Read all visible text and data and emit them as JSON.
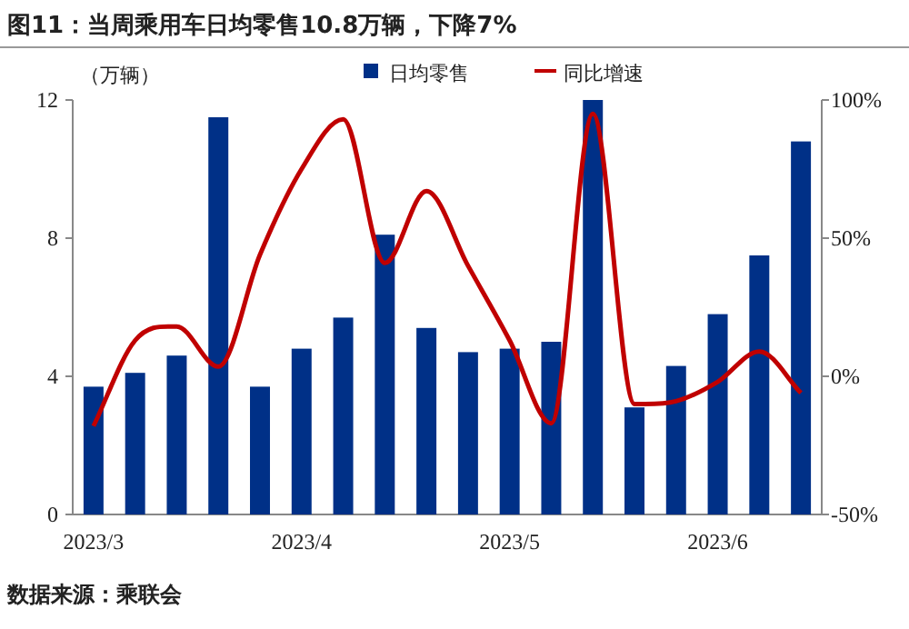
{
  "chart_data": {
    "type": "bar",
    "title": "图11：当周乘用车日均零售10.8万辆，下降7%",
    "ylabel": "（万辆）",
    "categories": [
      "2023/3",
      null,
      null,
      null,
      null,
      "2023/4",
      null,
      null,
      null,
      null,
      "2023/5",
      null,
      null,
      null,
      null,
      "2023/6",
      null,
      null
    ],
    "series": [
      {
        "name": "日均零售",
        "color": "#003087",
        "values": [
          3.7,
          4.1,
          4.6,
          11.5,
          3.7,
          4.8,
          5.7,
          8.1,
          5.4,
          4.7,
          4.8,
          5.0,
          12.0,
          3.1,
          4.3,
          5.8,
          7.5,
          10.8
        ]
      },
      {
        "name": "同比增速",
        "type": "line",
        "axis": "y2",
        "color": "#c00000",
        "values": [
          -18,
          13,
          18,
          3.5,
          44,
          75,
          93,
          41,
          67,
          40,
          13,
          -17,
          95,
          -10,
          -9,
          -2,
          9,
          -6
        ]
      }
    ],
    "ylim": [
      0,
      12
    ],
    "yticks": [
      0,
      4,
      8,
      12
    ],
    "y2lim": [
      -50,
      100
    ],
    "y2ticks": [
      {
        "value": -50,
        "label": "-50%"
      },
      {
        "value": 0,
        "label": "0%"
      },
      {
        "value": 50,
        "label": "50%"
      },
      {
        "value": 100,
        "label": "100%"
      }
    ],
    "legend": "top",
    "grid": false,
    "annotations": [
      "数据来源：乘联会"
    ]
  }
}
